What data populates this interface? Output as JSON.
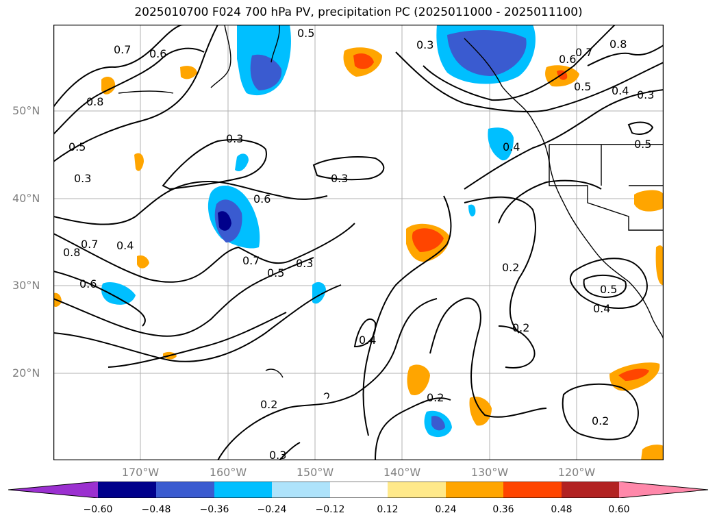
{
  "title": "2025010700 F024 700 hPa PV, precipitation PC (2025011000 - 2025011100)",
  "lat_labels": [
    "50°N",
    "40°N",
    "30°N",
    "20°N"
  ],
  "lon_labels": [
    "170°W",
    "160°W",
    "150°W",
    "140°W",
    "130°W",
    "120°W"
  ],
  "contour_labels": [
    "0.7",
    "0.6",
    "0.8",
    "0.5",
    "0.3",
    "0.3",
    "0.3",
    "0.6",
    "0.7",
    "0.4",
    "0.8",
    "0.6",
    "0.7",
    "0.5",
    "0.3",
    "0.4",
    "0.2",
    "0.2",
    "0.3",
    "0.4",
    "0.5",
    "0.2",
    "0.2",
    "0.2",
    "0.4",
    "0.6",
    "0.7",
    "0.8",
    "0.5",
    "0.4",
    "0.3",
    "0.5",
    "0.3",
    "0.5"
  ],
  "colorbar": {
    "colors": [
      "#9b30d0",
      "#00008b",
      "#3a5bd0",
      "#00bfff",
      "#aee3fb",
      "#ffffff",
      "#ffe98a",
      "#ffa500",
      "#ff4500",
      "#b22222",
      "#ff88aa"
    ],
    "tick_labels": [
      "−0.60",
      "−0.48",
      "−0.36",
      "−0.24",
      "−0.12",
      "0.12",
      "0.24",
      "0.36",
      "0.48",
      "0.60"
    ]
  }
}
